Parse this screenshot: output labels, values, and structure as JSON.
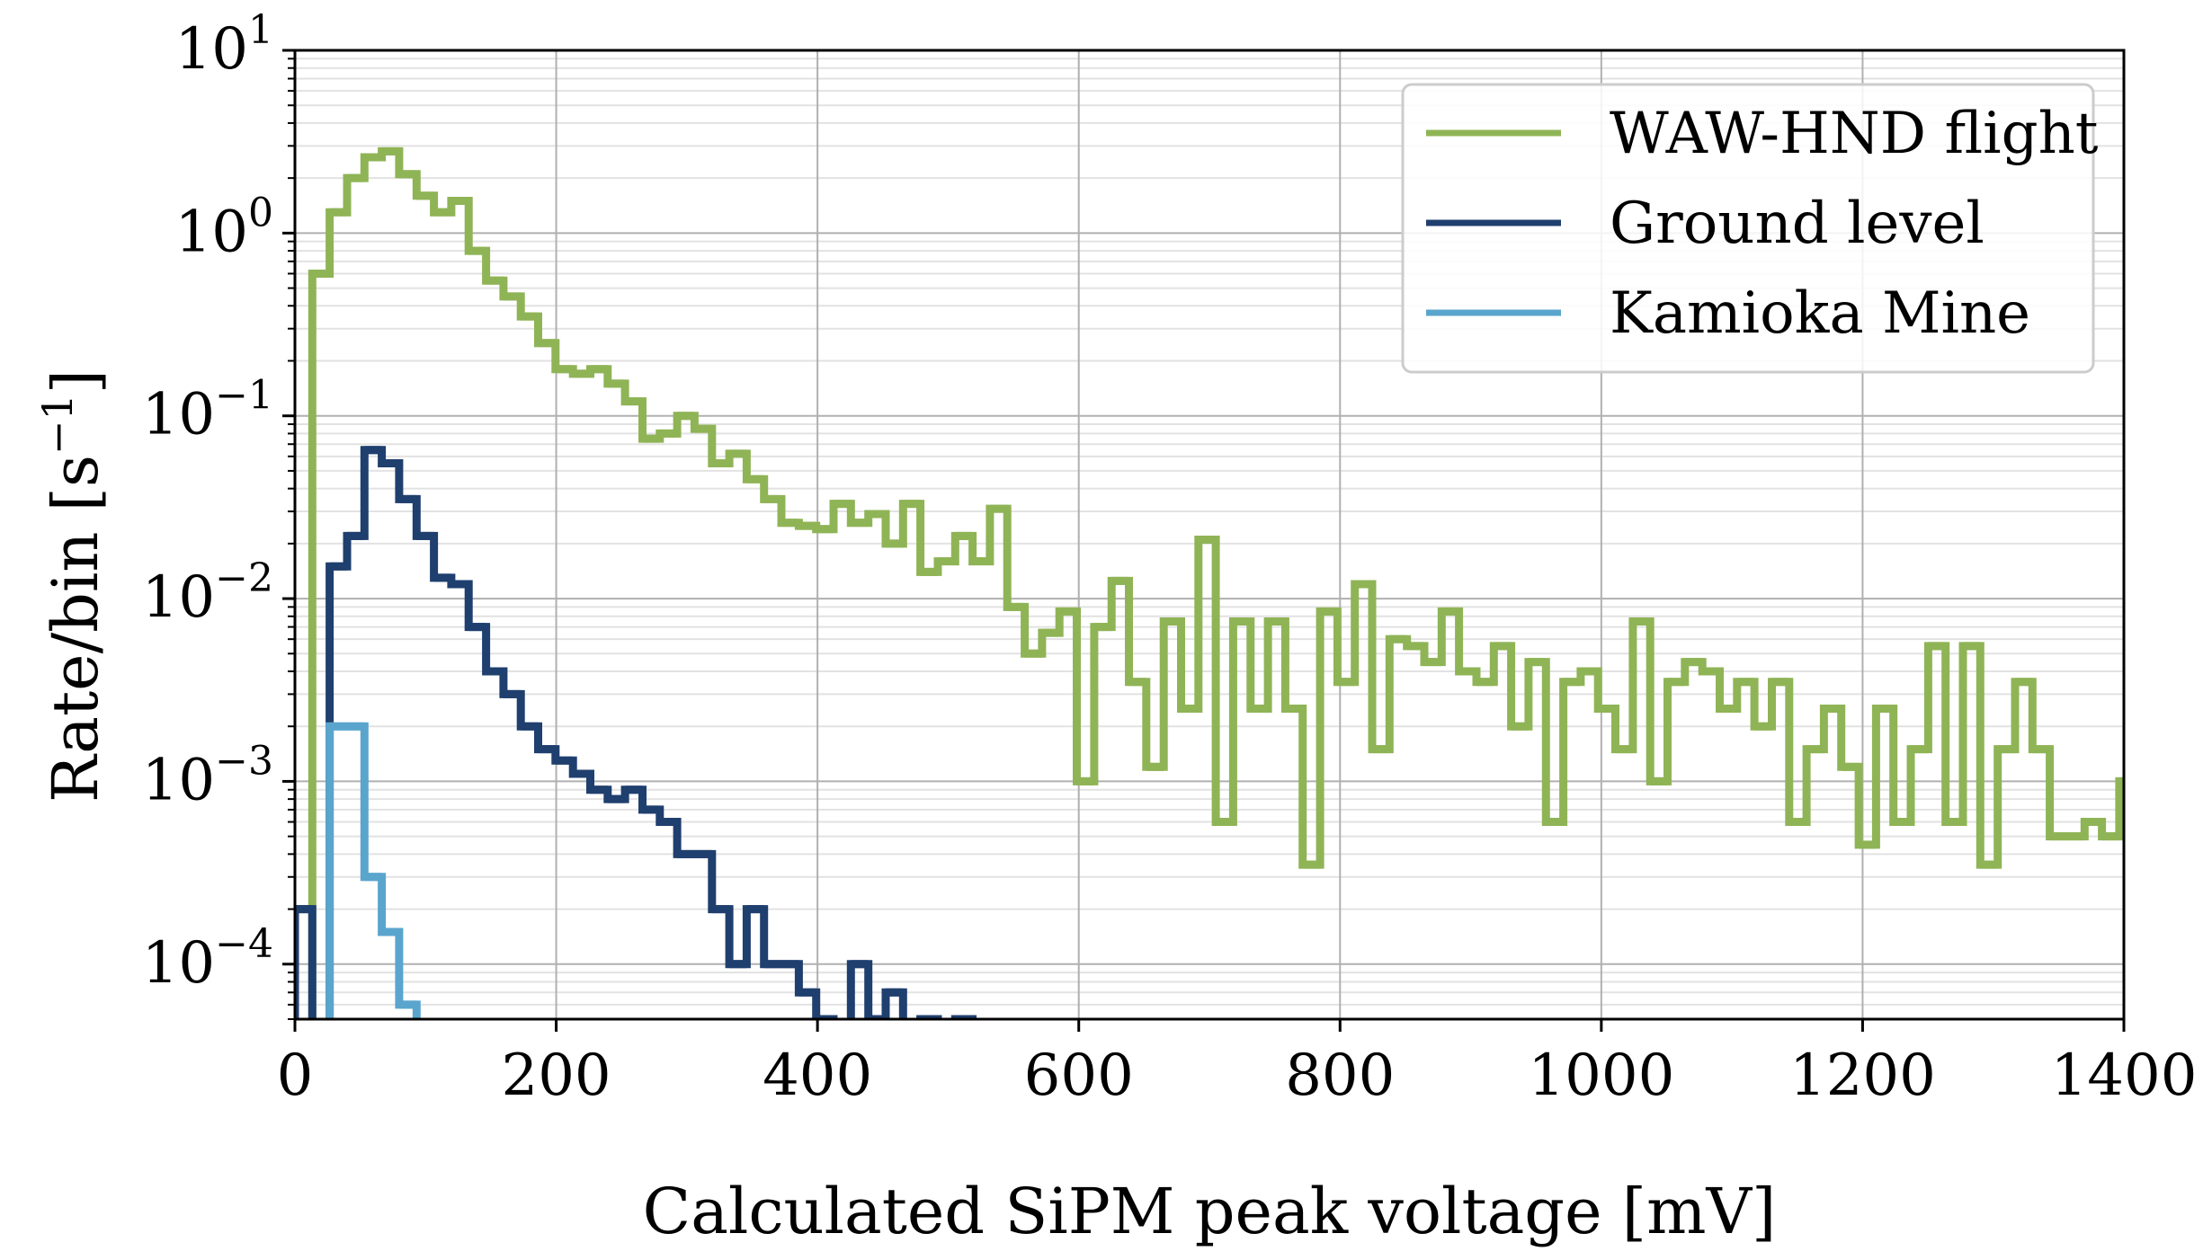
{
  "chart_data": {
    "type": "step-histogram",
    "xlabel": "Calculated SiPM peak voltage [mV]",
    "ylabel": "Rate/bin [s",
    "ylabel_sup": "−1",
    "ylabel_end": "]",
    "xlim": [
      0,
      1400
    ],
    "ylim": [
      5e-05,
      10
    ],
    "yscale": "log",
    "grid": true,
    "legend_location": "top-right",
    "x_ticks": [
      {
        "value": 0,
        "label": "0"
      },
      {
        "value": 200,
        "label": "200"
      },
      {
        "value": 400,
        "label": "400"
      },
      {
        "value": 600,
        "label": "600"
      },
      {
        "value": 800,
        "label": "800"
      },
      {
        "value": 1000,
        "label": "1000"
      },
      {
        "value": 1200,
        "label": "1200"
      },
      {
        "value": 1400,
        "label": "1400"
      }
    ],
    "y_ticks": [
      {
        "value": 10,
        "base": "10",
        "exp": "1"
      },
      {
        "value": 1,
        "base": "10",
        "exp": "0"
      },
      {
        "value": 0.1,
        "base": "10",
        "exp": "−1"
      },
      {
        "value": 0.01,
        "base": "10",
        "exp": "−2"
      },
      {
        "value": 0.001,
        "base": "10",
        "exp": "−3"
      },
      {
        "value": 0.0001,
        "base": "10",
        "exp": "−4"
      }
    ],
    "series": [
      {
        "name": "WAW-HND flight",
        "color": "#8fb456",
        "x_start": 0,
        "bin_width": 13.3,
        "values": [
          0,
          0.6,
          1.3,
          2.0,
          2.6,
          2.8,
          2.1,
          1.6,
          1.3,
          1.5,
          0.8,
          0.55,
          0.45,
          0.35,
          0.25,
          0.18,
          0.17,
          0.18,
          0.15,
          0.12,
          0.075,
          0.08,
          0.1,
          0.085,
          0.055,
          0.062,
          0.045,
          0.035,
          0.026,
          0.025,
          0.024,
          0.033,
          0.026,
          0.029,
          0.02,
          0.033,
          0.014,
          0.016,
          0.022,
          0.016,
          0.031,
          0.009,
          0.005,
          0.0065,
          0.0085,
          0.001,
          0.007,
          0.0125,
          0.0035,
          0.0012,
          0.0075,
          0.0025,
          0.021,
          0.0006,
          0.0075,
          0.0025,
          0.0075,
          0.0025,
          0.00035,
          0.0085,
          0.0035,
          0.012,
          0.0015,
          0.006,
          0.0055,
          0.0045,
          0.0085,
          0.004,
          0.0035,
          0.0055,
          0.002,
          0.0045,
          0.0006,
          0.0035,
          0.004,
          0.0025,
          0.0015,
          0.0075,
          0.001,
          0.0035,
          0.0045,
          0.004,
          0.0025,
          0.0035,
          0.002,
          0.0035,
          0.0006,
          0.0015,
          0.0025,
          0.0012,
          0.00045,
          0.0025,
          0.0006,
          0.0015,
          0.0055,
          0.0006,
          0.0055,
          0.00035,
          0.0015,
          0.0035,
          0.0015,
          0.0005,
          0.0005,
          0.0006,
          0.0005,
          0.001
        ]
      },
      {
        "name": "Ground level",
        "color": "#1f3f6e",
        "x_start": 0,
        "bin_width": 13.3,
        "values": [
          0.0002,
          0,
          0.015,
          0.022,
          0.065,
          0.055,
          0.035,
          0.022,
          0.013,
          0.012,
          0.007,
          0.004,
          0.003,
          0.002,
          0.0015,
          0.0013,
          0.0011,
          0.0009,
          0.0008,
          0.0009,
          0.0007,
          0.0006,
          0.0004,
          0.0004,
          0.0002,
          0.0001,
          0.0002,
          0.0001,
          0.0001,
          7e-05,
          5e-05,
          4e-05,
          0.0001,
          5e-05,
          7e-05,
          4e-05,
          5e-05,
          3e-05,
          5e-05,
          4e-05
        ]
      },
      {
        "name": "Kamioka Mine",
        "color": "#5aa5cd",
        "x_start": 0,
        "bin_width": 13.3,
        "values": [
          0,
          0,
          0.002,
          0.002,
          0.0003,
          0.00015,
          6e-05
        ]
      }
    ]
  }
}
